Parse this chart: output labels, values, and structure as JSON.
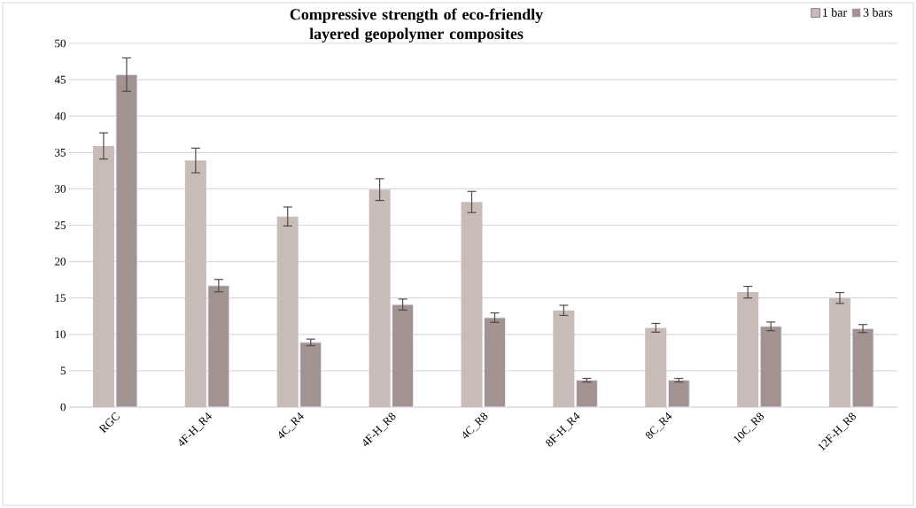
{
  "chart_data": {
    "type": "bar",
    "title": "Compressive strength of eco-friendly layered geopolymer composites",
    "categories": [
      "RGC",
      "4F-H_R4",
      "4C_R4",
      "4F-H_R8",
      "4C_R8",
      "8F-H_R4",
      "8C_R4",
      "10C_R8",
      "12F-H_R8"
    ],
    "series": [
      {
        "name": "1 bar",
        "color": "#c8bbb8",
        "values": [
          35.9,
          33.9,
          26.2,
          29.9,
          28.2,
          13.3,
          10.9,
          15.8,
          15.0
        ],
        "errors": [
          1.8,
          1.7,
          1.3,
          1.5,
          1.45,
          0.7,
          0.6,
          0.8,
          0.75
        ]
      },
      {
        "name": "3 bars",
        "color": "#a39390",
        "values": [
          45.7,
          16.7,
          8.9,
          14.1,
          12.3,
          3.7,
          3.7,
          11.1,
          10.8
        ],
        "errors": [
          2.3,
          0.85,
          0.45,
          0.75,
          0.65,
          0.25,
          0.25,
          0.6,
          0.55
        ]
      }
    ],
    "ylim": [
      0,
      50
    ],
    "yticks": [
      0,
      5,
      10,
      15,
      20,
      25,
      30,
      35,
      40,
      45,
      50
    ],
    "grid": "y",
    "legend": "top right"
  }
}
